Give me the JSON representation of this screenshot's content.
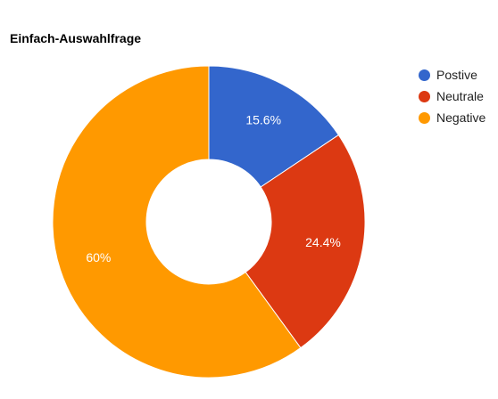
{
  "chart_data": {
    "type": "pie",
    "title": "Einfach-Auswahlfrage",
    "donut": true,
    "legend_position": "right",
    "labels": [
      "Postive",
      "Neutrale",
      "Negative"
    ],
    "values": [
      15.6,
      24.4,
      60
    ],
    "data_labels": [
      "15.6%",
      "24.4%",
      "60%"
    ],
    "colors": [
      "#3366cc",
      "#dc3912",
      "#ff9900"
    ]
  }
}
